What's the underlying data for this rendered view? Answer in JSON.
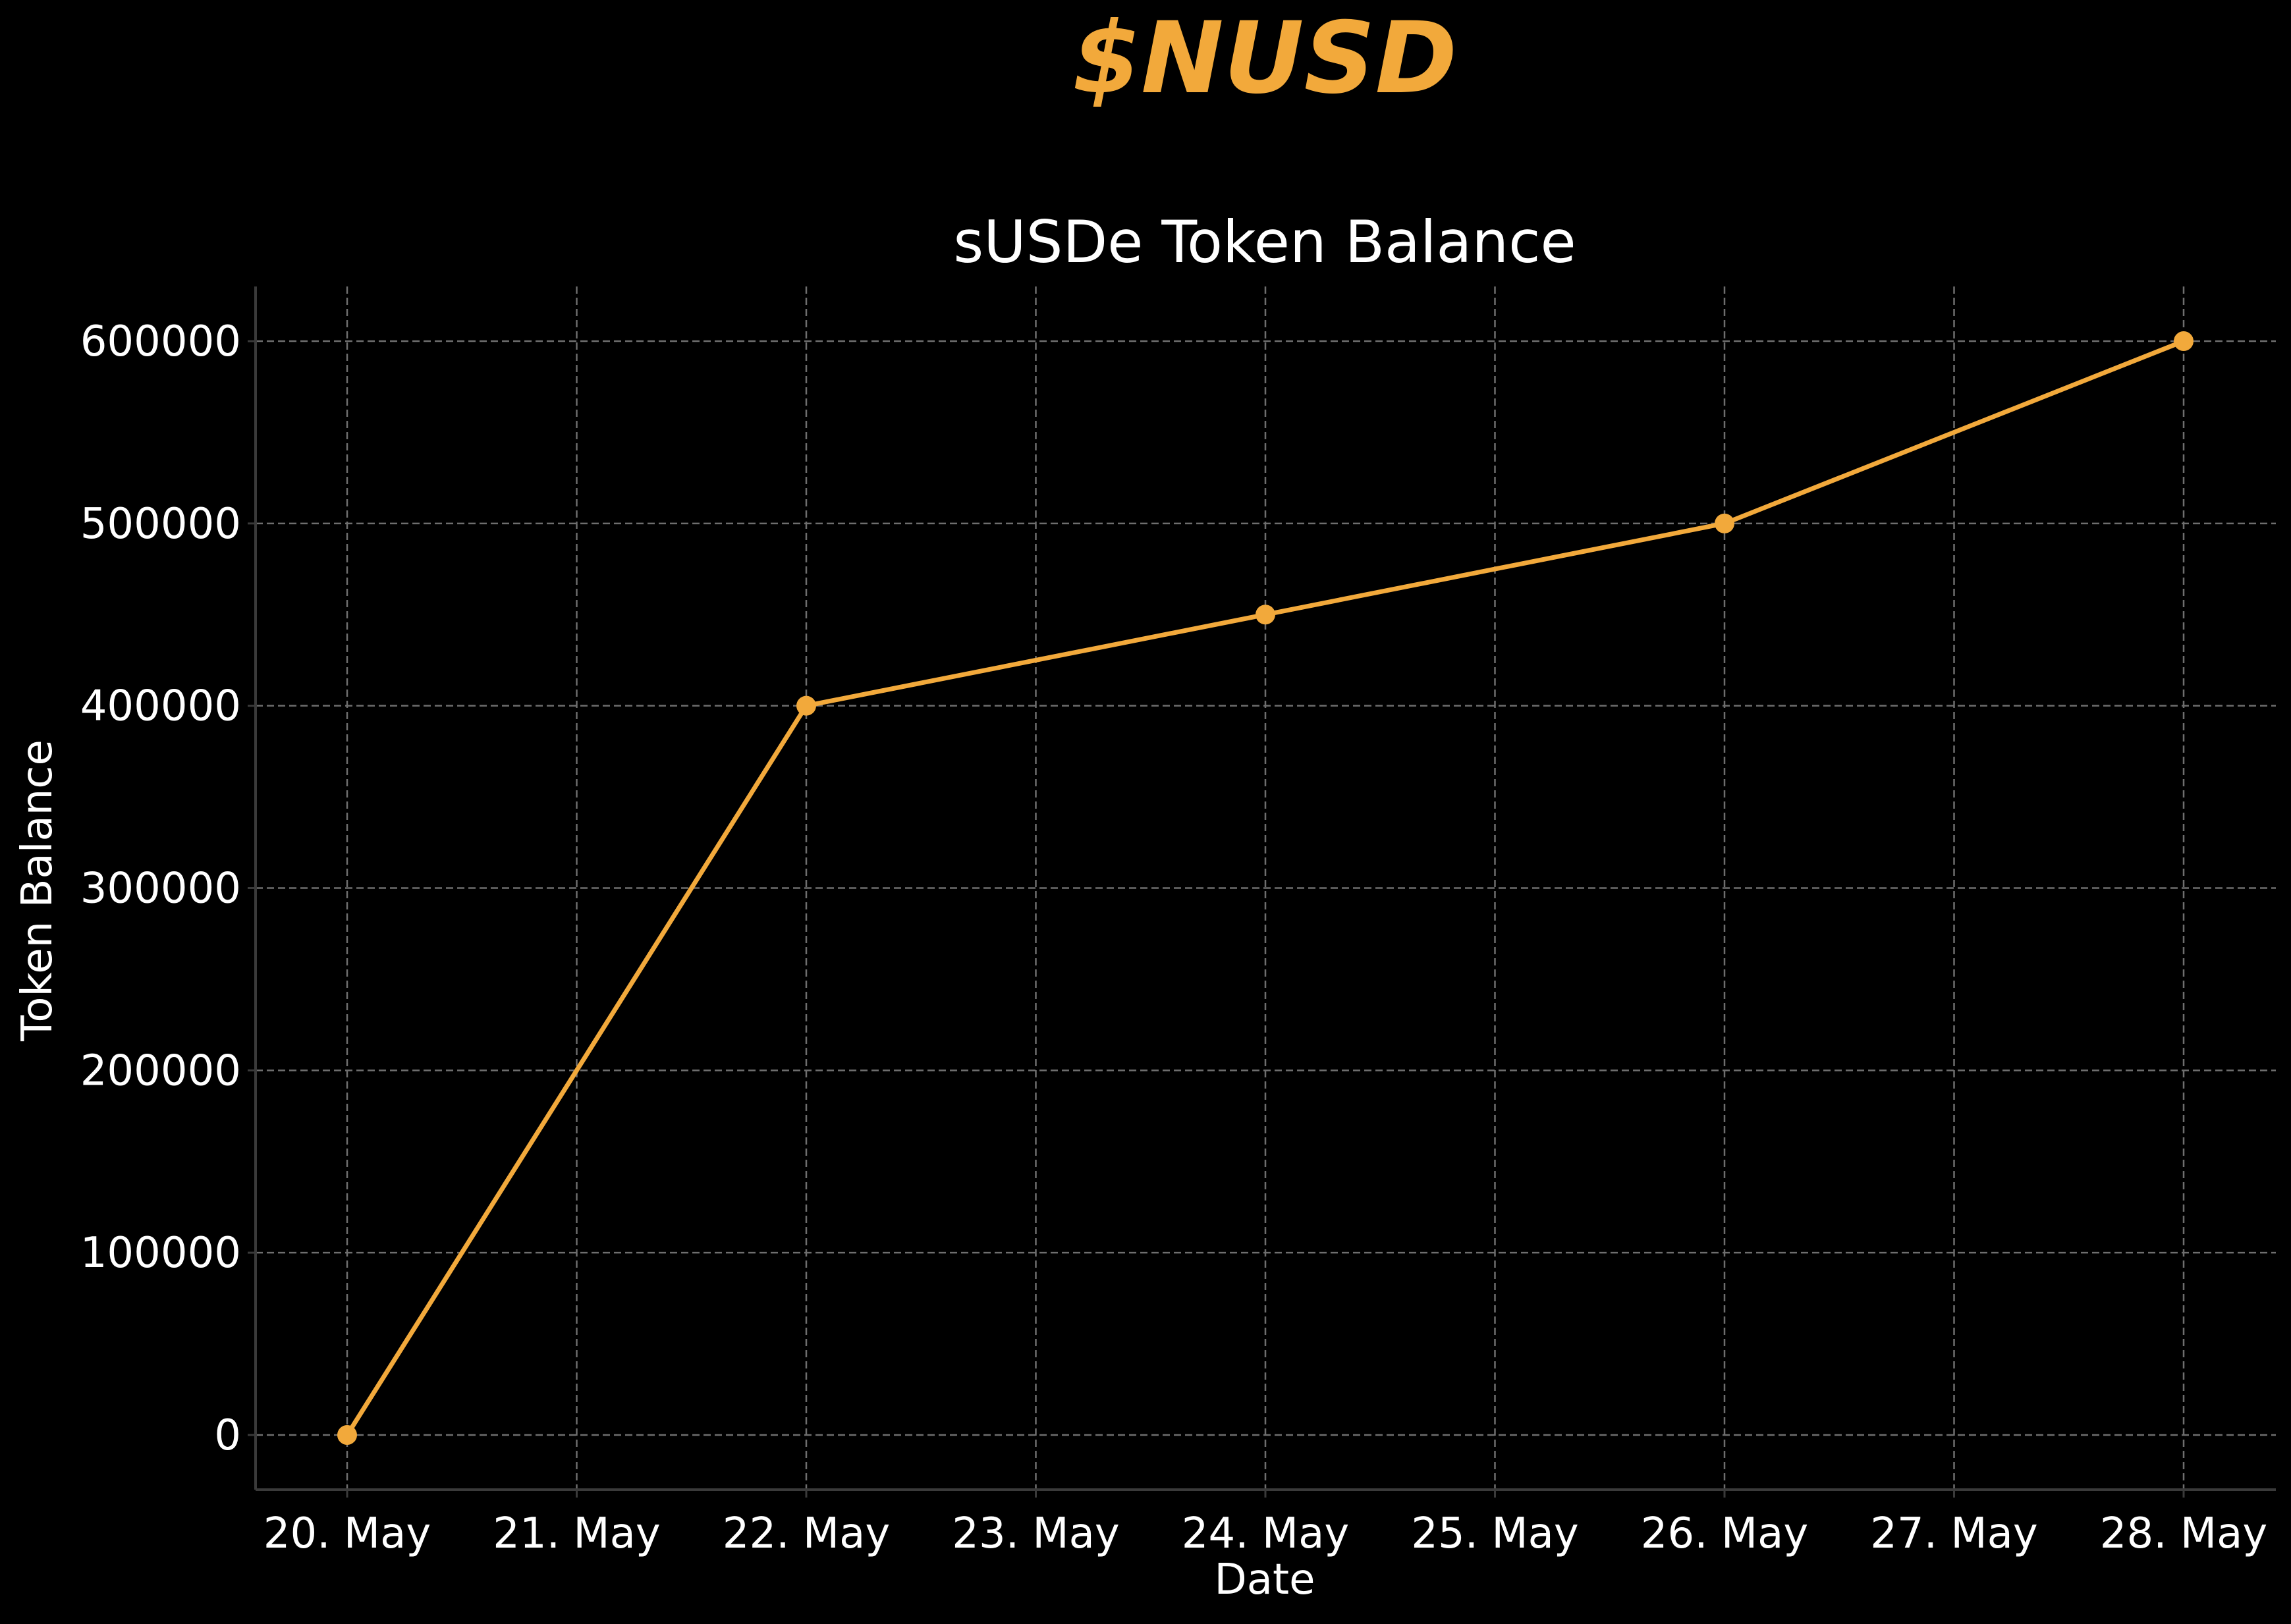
{
  "header": {
    "brand": "$NUSD"
  },
  "colors": {
    "background": "#000000",
    "accent": "#F2A93B",
    "text": "#FFFFFF",
    "grid": "#6E6E6E",
    "axis": "#3A3A3A"
  },
  "chart_data": {
    "type": "line",
    "title": "sUSDe Token Balance",
    "xlabel": "Date",
    "ylabel": "Token Balance",
    "x": [
      "20. May",
      "22. May",
      "24. May",
      "26. May",
      "28. May"
    ],
    "series": [
      {
        "values": [
          0,
          400000,
          450000,
          500000,
          600000
        ]
      }
    ],
    "x_ticks": [
      "20. May",
      "21. May",
      "22. May",
      "23. May",
      "24. May",
      "25. May",
      "26. May",
      "27. May",
      "28. May"
    ],
    "y_ticks": [
      "0",
      "100000",
      "200000",
      "300000",
      "400000",
      "500000",
      "600000"
    ],
    "ylim": [
      -30000,
      630000
    ],
    "grid": true,
    "markers": true
  }
}
